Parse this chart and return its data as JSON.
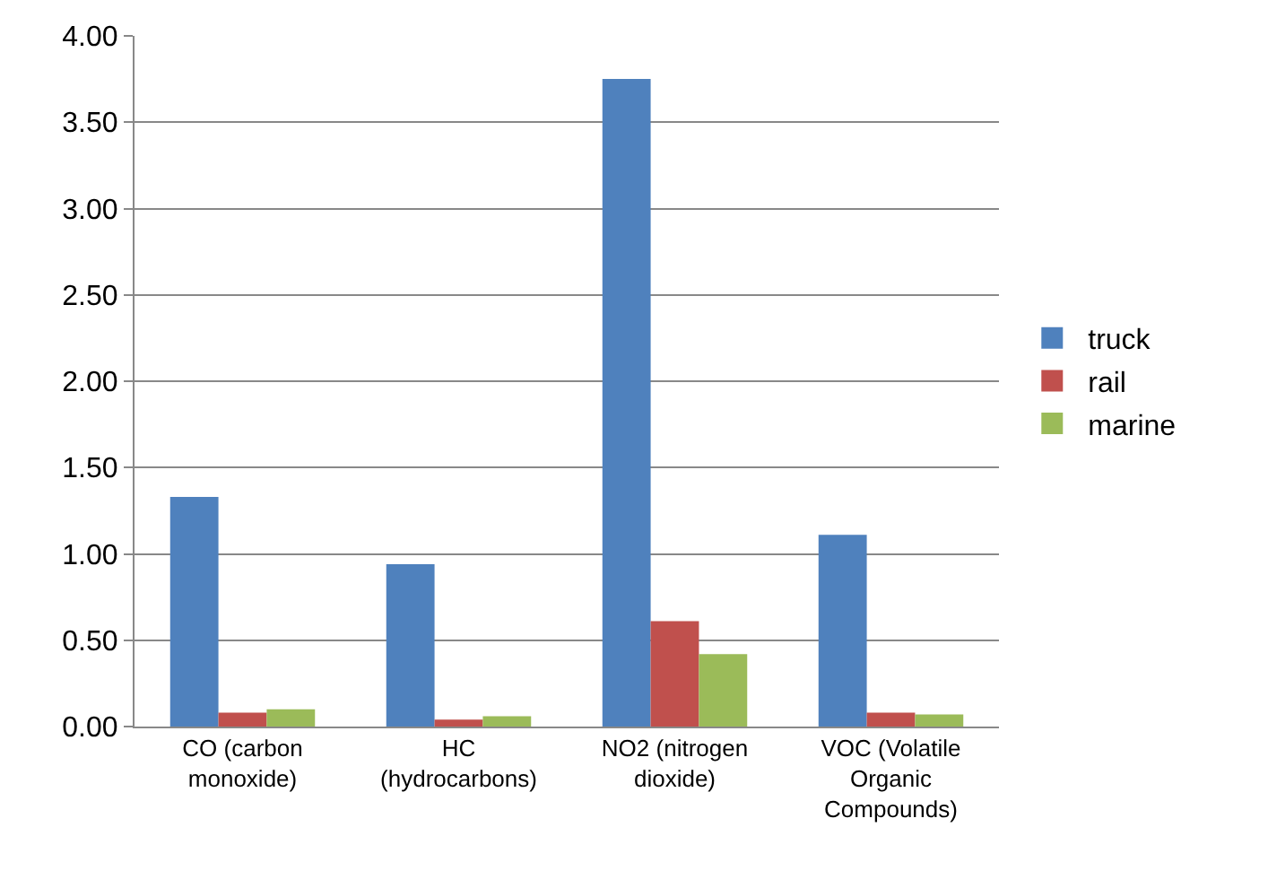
{
  "chart_data": {
    "type": "bar",
    "categories": [
      "CO (carbon monoxide)",
      "HC (hydrocarbons)",
      "NO2 (nitrogen dioxide)",
      "VOC (Volatile Organic Compounds)"
    ],
    "series": [
      {
        "name": "truck",
        "color": "#4f81bd",
        "values": [
          1.33,
          0.94,
          3.75,
          1.11
        ]
      },
      {
        "name": "rail",
        "color": "#c0504d",
        "values": [
          0.08,
          0.04,
          0.61,
          0.08
        ]
      },
      {
        "name": "marine",
        "color": "#9bbb59",
        "values": [
          0.1,
          0.06,
          0.42,
          0.07
        ]
      }
    ],
    "ylim": [
      0,
      4
    ],
    "yticks": [
      {
        "value": 0,
        "label": "0.00"
      },
      {
        "value": 0.5,
        "label": "0.50"
      },
      {
        "value": 1,
        "label": "1.00"
      },
      {
        "value": 1.5,
        "label": "1.50"
      },
      {
        "value": 2,
        "label": "2.00"
      },
      {
        "value": 2.5,
        "label": "2.50"
      },
      {
        "value": 3,
        "label": "3.00"
      },
      {
        "value": 3.5,
        "label": "3.50"
      },
      {
        "value": 4,
        "label": "4.00"
      }
    ],
    "grid": "y",
    "legend": "right"
  }
}
